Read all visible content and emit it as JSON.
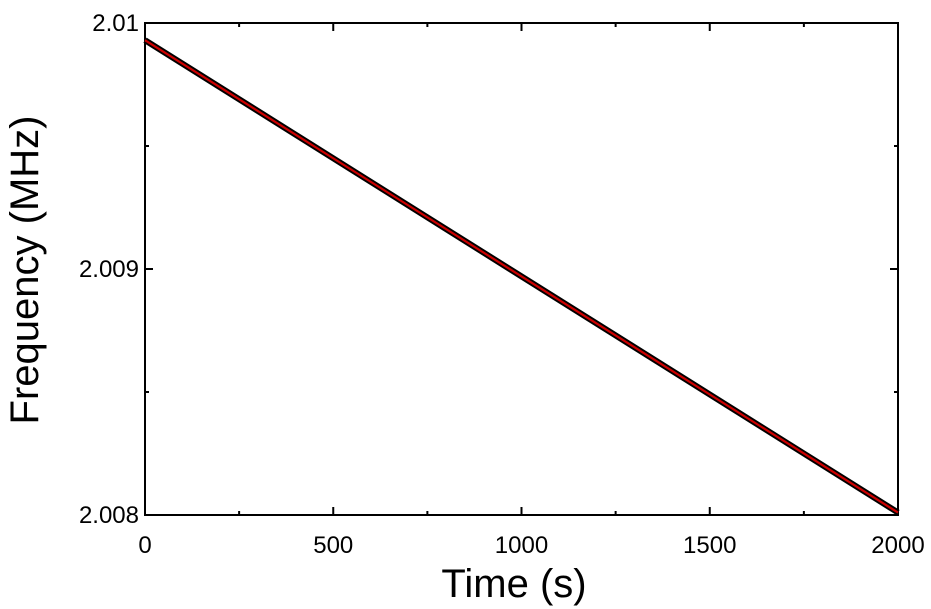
{
  "chart_data": {
    "type": "line",
    "title": "",
    "xlabel": "Time (s)",
    "ylabel": "Frequency (MHz)",
    "xlim": [
      0,
      2000
    ],
    "ylim": [
      2.008,
      2.01
    ],
    "x_ticks": [
      0,
      500,
      1000,
      1500,
      2000
    ],
    "x_tick_labels": [
      "0",
      "500",
      "1000",
      "1500",
      "2000"
    ],
    "y_ticks": [
      2.008,
      2.009,
      2.01
    ],
    "y_tick_labels": [
      "2.008",
      "2.009",
      "2.01"
    ],
    "grid": false,
    "series": [
      {
        "color": "#000000",
        "x": [
          0,
          2000
        ],
        "y": [
          2.00993,
          2.00801
        ]
      },
      {
        "color": "#cc0000",
        "x": [
          0,
          2000
        ],
        "y": [
          2.00993,
          2.00801
        ]
      }
    ]
  }
}
